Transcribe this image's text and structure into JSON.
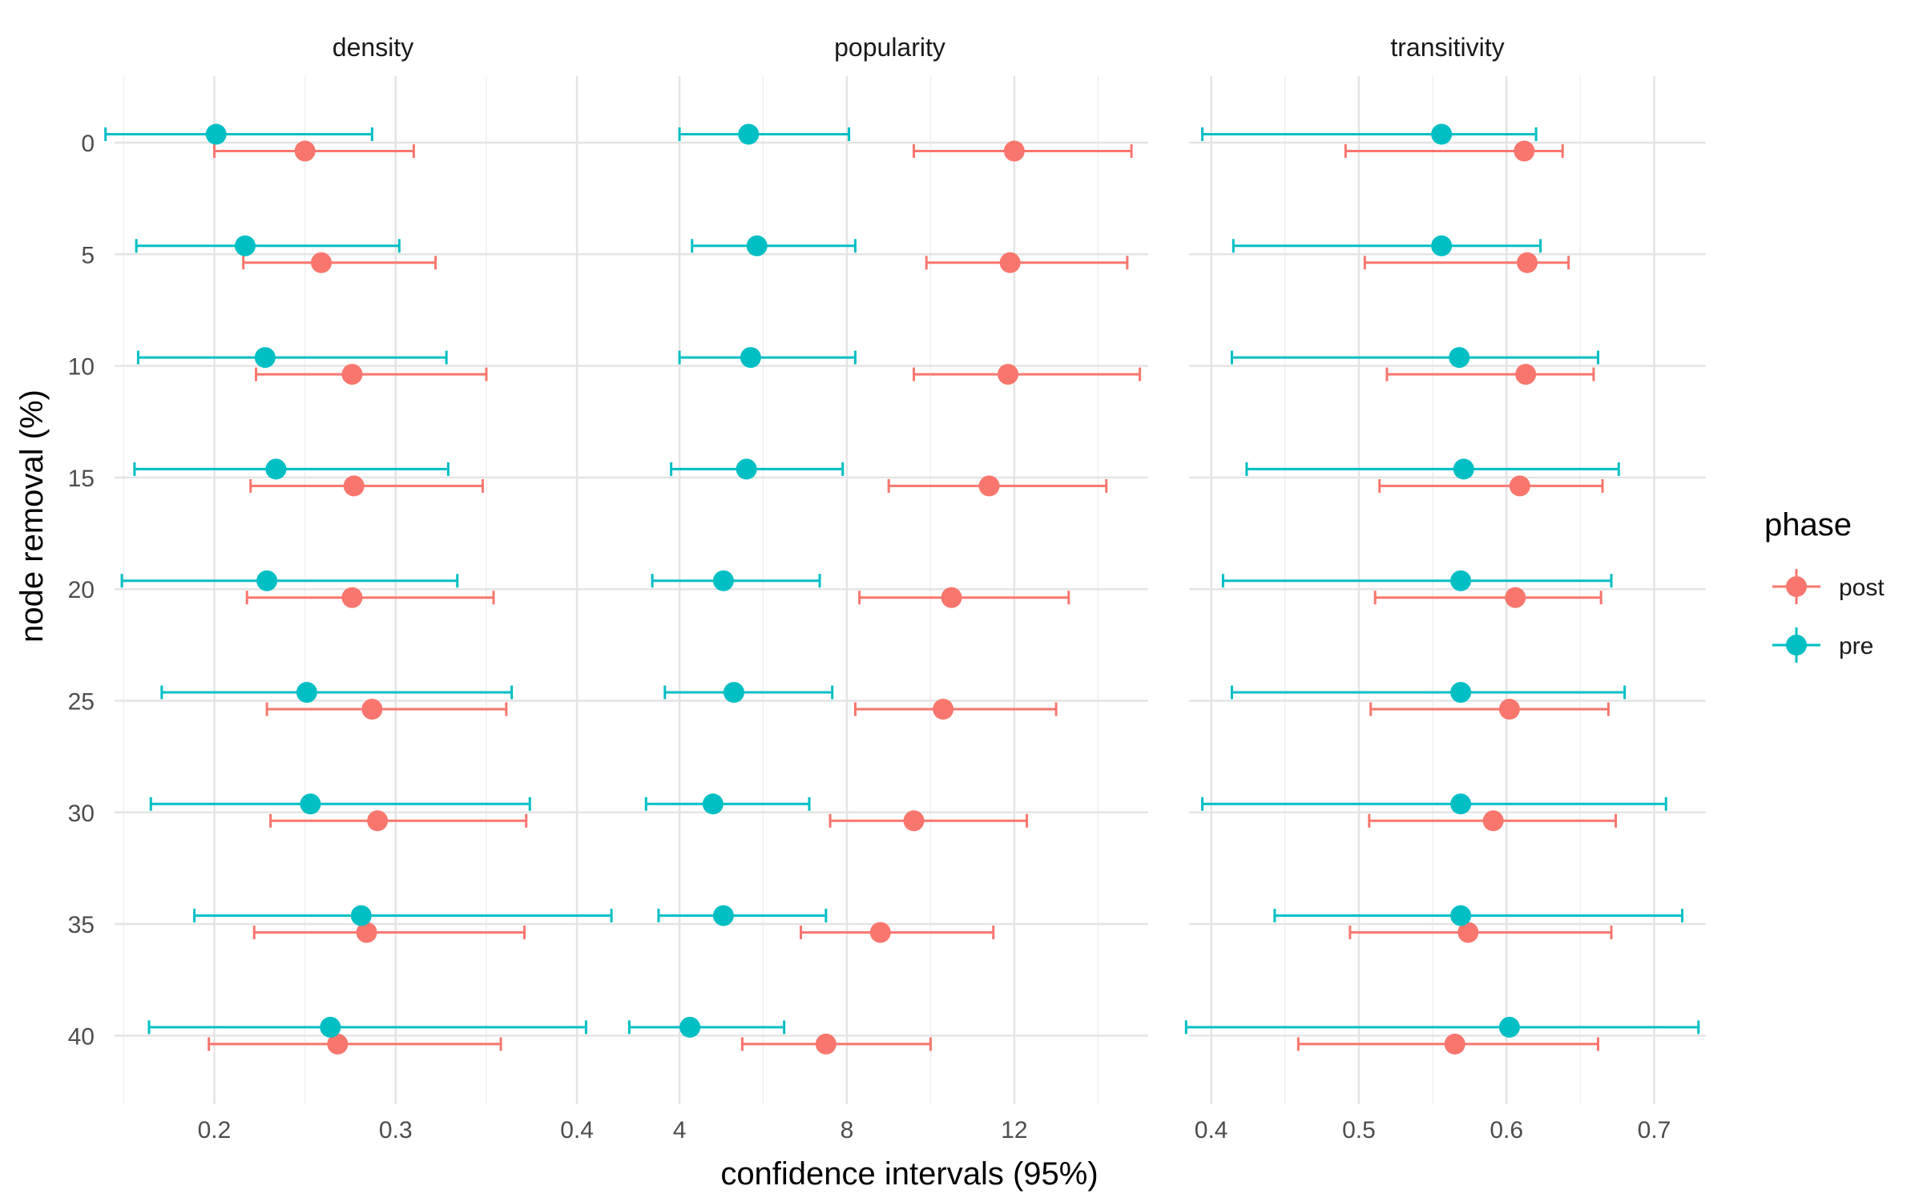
{
  "chart_data": {
    "type": "errorbar",
    "xlabel": "confidence intervals (95%)",
    "ylabel": "node removal (%)",
    "y_categories": [
      "0",
      "5",
      "10",
      "15",
      "20",
      "25",
      "30",
      "35",
      "40"
    ],
    "legend": {
      "title": "phase",
      "placement": "right",
      "entries": [
        {
          "label": "post",
          "color": "#F8766D"
        },
        {
          "label": "pre",
          "color": "#00BFC4"
        }
      ]
    },
    "grid": true,
    "panels": [
      {
        "name": "density",
        "xlim": [
          0.145,
          0.43
        ],
        "xticks": [
          0.2,
          0.3,
          0.4
        ],
        "xtick_labels": [
          "0.2",
          "0.3",
          "0.4"
        ],
        "series": [
          {
            "phase": "post",
            "points": [
              {
                "y": "0",
                "est": 0.25,
                "lo": 0.2,
                "hi": 0.31
              },
              {
                "y": "5",
                "est": 0.259,
                "lo": 0.216,
                "hi": 0.322
              },
              {
                "y": "10",
                "est": 0.276,
                "lo": 0.223,
                "hi": 0.35
              },
              {
                "y": "15",
                "est": 0.277,
                "lo": 0.22,
                "hi": 0.348
              },
              {
                "y": "20",
                "est": 0.276,
                "lo": 0.218,
                "hi": 0.354
              },
              {
                "y": "25",
                "est": 0.287,
                "lo": 0.229,
                "hi": 0.361
              },
              {
                "y": "30",
                "est": 0.29,
                "lo": 0.231,
                "hi": 0.372
              },
              {
                "y": "35",
                "est": 0.284,
                "lo": 0.222,
                "hi": 0.371
              },
              {
                "y": "40",
                "est": 0.268,
                "lo": 0.197,
                "hi": 0.358
              }
            ]
          },
          {
            "phase": "pre",
            "points": [
              {
                "y": "0",
                "est": 0.201,
                "lo": 0.14,
                "hi": 0.287
              },
              {
                "y": "5",
                "est": 0.217,
                "lo": 0.157,
                "hi": 0.302
              },
              {
                "y": "10",
                "est": 0.228,
                "lo": 0.158,
                "hi": 0.328
              },
              {
                "y": "15",
                "est": 0.234,
                "lo": 0.156,
                "hi": 0.329
              },
              {
                "y": "20",
                "est": 0.229,
                "lo": 0.149,
                "hi": 0.334
              },
              {
                "y": "25",
                "est": 0.251,
                "lo": 0.171,
                "hi": 0.364
              },
              {
                "y": "30",
                "est": 0.253,
                "lo": 0.165,
                "hi": 0.374
              },
              {
                "y": "35",
                "est": 0.281,
                "lo": 0.189,
                "hi": 0.419
              },
              {
                "y": "40",
                "est": 0.264,
                "lo": 0.164,
                "hi": 0.405
              }
            ]
          }
        ]
      },
      {
        "name": "popularity",
        "xlim": [
          2.85,
          15.2
        ],
        "xticks": [
          4,
          8,
          12
        ],
        "xtick_labels": [
          "4",
          "8",
          "12"
        ],
        "series": [
          {
            "phase": "post",
            "points": [
              {
                "y": "0",
                "est": 12.0,
                "lo": 9.6,
                "hi": 14.8
              },
              {
                "y": "5",
                "est": 11.9,
                "lo": 9.9,
                "hi": 14.7
              },
              {
                "y": "10",
                "est": 11.85,
                "lo": 9.6,
                "hi": 15.0
              },
              {
                "y": "15",
                "est": 11.4,
                "lo": 9.0,
                "hi": 14.2
              },
              {
                "y": "20",
                "est": 10.5,
                "lo": 8.3,
                "hi": 13.3
              },
              {
                "y": "25",
                "est": 10.3,
                "lo": 8.2,
                "hi": 13.0
              },
              {
                "y": "30",
                "est": 9.6,
                "lo": 7.6,
                "hi": 12.3
              },
              {
                "y": "35",
                "est": 8.8,
                "lo": 6.9,
                "hi": 11.5
              },
              {
                "y": "40",
                "est": 7.5,
                "lo": 5.5,
                "hi": 10.0
              }
            ]
          },
          {
            "phase": "pre",
            "points": [
              {
                "y": "0",
                "est": 5.65,
                "lo": 4.0,
                "hi": 8.05
              },
              {
                "y": "5",
                "est": 5.85,
                "lo": 4.3,
                "hi": 8.2
              },
              {
                "y": "10",
                "est": 5.7,
                "lo": 4.0,
                "hi": 8.2
              },
              {
                "y": "15",
                "est": 5.6,
                "lo": 3.8,
                "hi": 7.9
              },
              {
                "y": "20",
                "est": 5.05,
                "lo": 3.35,
                "hi": 7.35
              },
              {
                "y": "25",
                "est": 5.3,
                "lo": 3.65,
                "hi": 7.65
              },
              {
                "y": "30",
                "est": 4.8,
                "lo": 3.2,
                "hi": 7.1
              },
              {
                "y": "35",
                "est": 5.05,
                "lo": 3.5,
                "hi": 7.5
              },
              {
                "y": "40",
                "est": 4.25,
                "lo": 2.8,
                "hi": 6.5
              }
            ]
          }
        ]
      },
      {
        "name": "transitivity",
        "xlim": [
          0.385,
          0.735
        ],
        "xticks": [
          0.4,
          0.5,
          0.6,
          0.7
        ],
        "xtick_labels": [
          "0.4",
          "0.5",
          "0.6",
          "0.7"
        ],
        "series": [
          {
            "phase": "post",
            "points": [
              {
                "y": "0",
                "est": 0.612,
                "lo": 0.491,
                "hi": 0.638
              },
              {
                "y": "5",
                "est": 0.614,
                "lo": 0.504,
                "hi": 0.642
              },
              {
                "y": "10",
                "est": 0.613,
                "lo": 0.519,
                "hi": 0.659
              },
              {
                "y": "15",
                "est": 0.609,
                "lo": 0.514,
                "hi": 0.665
              },
              {
                "y": "20",
                "est": 0.606,
                "lo": 0.511,
                "hi": 0.664
              },
              {
                "y": "25",
                "est": 0.602,
                "lo": 0.508,
                "hi": 0.669
              },
              {
                "y": "30",
                "est": 0.591,
                "lo": 0.507,
                "hi": 0.674
              },
              {
                "y": "35",
                "est": 0.574,
                "lo": 0.494,
                "hi": 0.671
              },
              {
                "y": "40",
                "est": 0.565,
                "lo": 0.459,
                "hi": 0.662
              }
            ]
          },
          {
            "phase": "pre",
            "points": [
              {
                "y": "0",
                "est": 0.556,
                "lo": 0.394,
                "hi": 0.62
              },
              {
                "y": "5",
                "est": 0.556,
                "lo": 0.415,
                "hi": 0.623
              },
              {
                "y": "10",
                "est": 0.568,
                "lo": 0.414,
                "hi": 0.662
              },
              {
                "y": "15",
                "est": 0.571,
                "lo": 0.424,
                "hi": 0.676
              },
              {
                "y": "20",
                "est": 0.569,
                "lo": 0.408,
                "hi": 0.671
              },
              {
                "y": "25",
                "est": 0.569,
                "lo": 0.414,
                "hi": 0.68
              },
              {
                "y": "30",
                "est": 0.569,
                "lo": 0.394,
                "hi": 0.708
              },
              {
                "y": "35",
                "est": 0.569,
                "lo": 0.443,
                "hi": 0.719
              },
              {
                "y": "40",
                "est": 0.602,
                "lo": 0.383,
                "hi": 0.73
              }
            ]
          }
        ]
      }
    ]
  }
}
